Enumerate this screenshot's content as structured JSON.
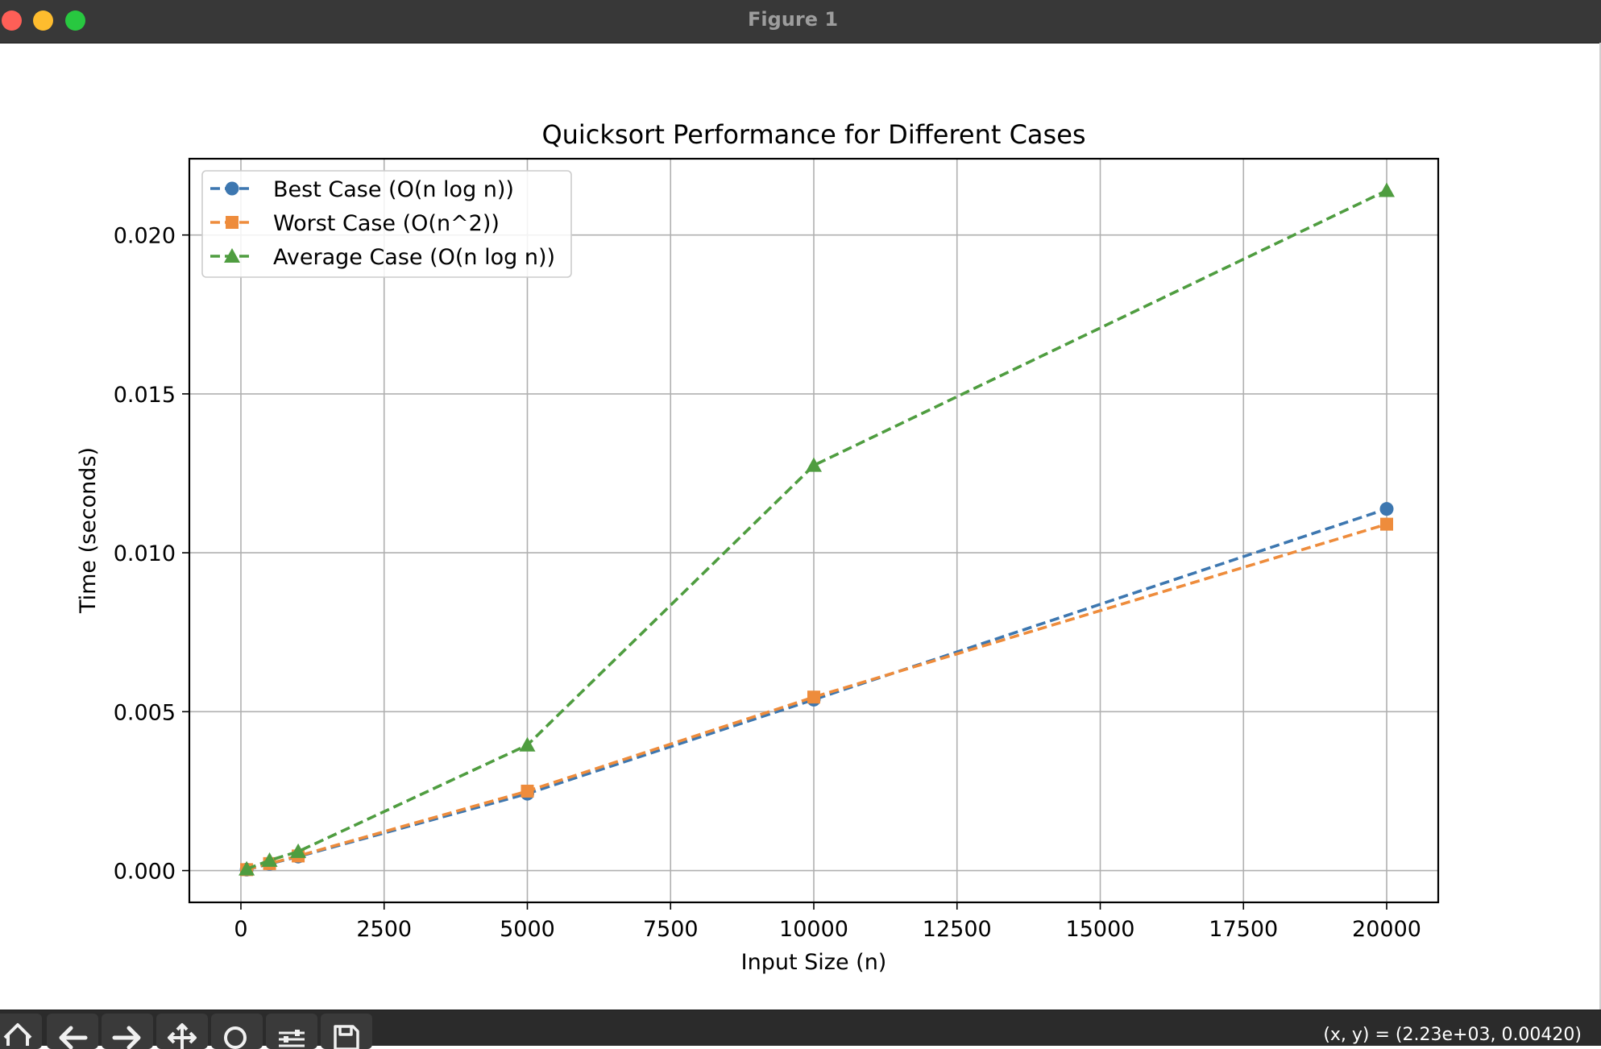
{
  "window": {
    "title": "Figure 1"
  },
  "toolbar": {
    "buttons": [
      {
        "icon": "home-icon"
      },
      {
        "icon": "back-arrow-icon"
      },
      {
        "icon": "forward-arrow-icon"
      },
      {
        "icon": "pan-icon"
      },
      {
        "icon": "zoom-icon"
      },
      {
        "icon": "configure-subplots-icon"
      },
      {
        "icon": "save-icon"
      }
    ],
    "coordinates": "(x, y) = (2.23e+03, 0.00420)"
  },
  "chart_data": {
    "type": "line",
    "title": "Quicksort Performance for Different Cases",
    "xlabel": "Input Size (n)",
    "ylabel": "Time (seconds)",
    "xlim": [
      -900,
      20900
    ],
    "ylim": [
      -0.001,
      0.0224
    ],
    "xticks": [
      0,
      2500,
      5000,
      7500,
      10000,
      12500,
      15000,
      17500,
      20000
    ],
    "xtick_labels": [
      "0",
      "2500",
      "5000",
      "7500",
      "10000",
      "12500",
      "15000",
      "17500",
      "20000"
    ],
    "yticks": [
      0.0,
      0.005,
      0.01,
      0.015,
      0.02
    ],
    "ytick_labels": [
      "0.000",
      "0.005",
      "0.010",
      "0.015",
      "0.020"
    ],
    "grid": true,
    "legend_position": "upper-left",
    "x": [
      100,
      500,
      1000,
      5000,
      10000,
      20000
    ],
    "series": [
      {
        "name": "Best Case (O(n log n))",
        "color": "#3d77b0",
        "marker": "circle",
        "linestyle": "dashed",
        "values": [
          3e-05,
          0.00021,
          0.00044,
          0.00242,
          0.00538,
          0.01138
        ]
      },
      {
        "name": "Worst Case (O(n^2))",
        "color": "#ee8c3c",
        "marker": "square",
        "linestyle": "dashed",
        "values": [
          3e-05,
          0.00022,
          0.00046,
          0.0025,
          0.00546,
          0.0109
        ]
      },
      {
        "name": "Average Case (O(n log n))",
        "color": "#4f9d40",
        "marker": "triangle",
        "linestyle": "dashed",
        "values": [
          5e-05,
          0.00032,
          0.0006,
          0.00395,
          0.01275,
          0.0214
        ]
      }
    ]
  }
}
